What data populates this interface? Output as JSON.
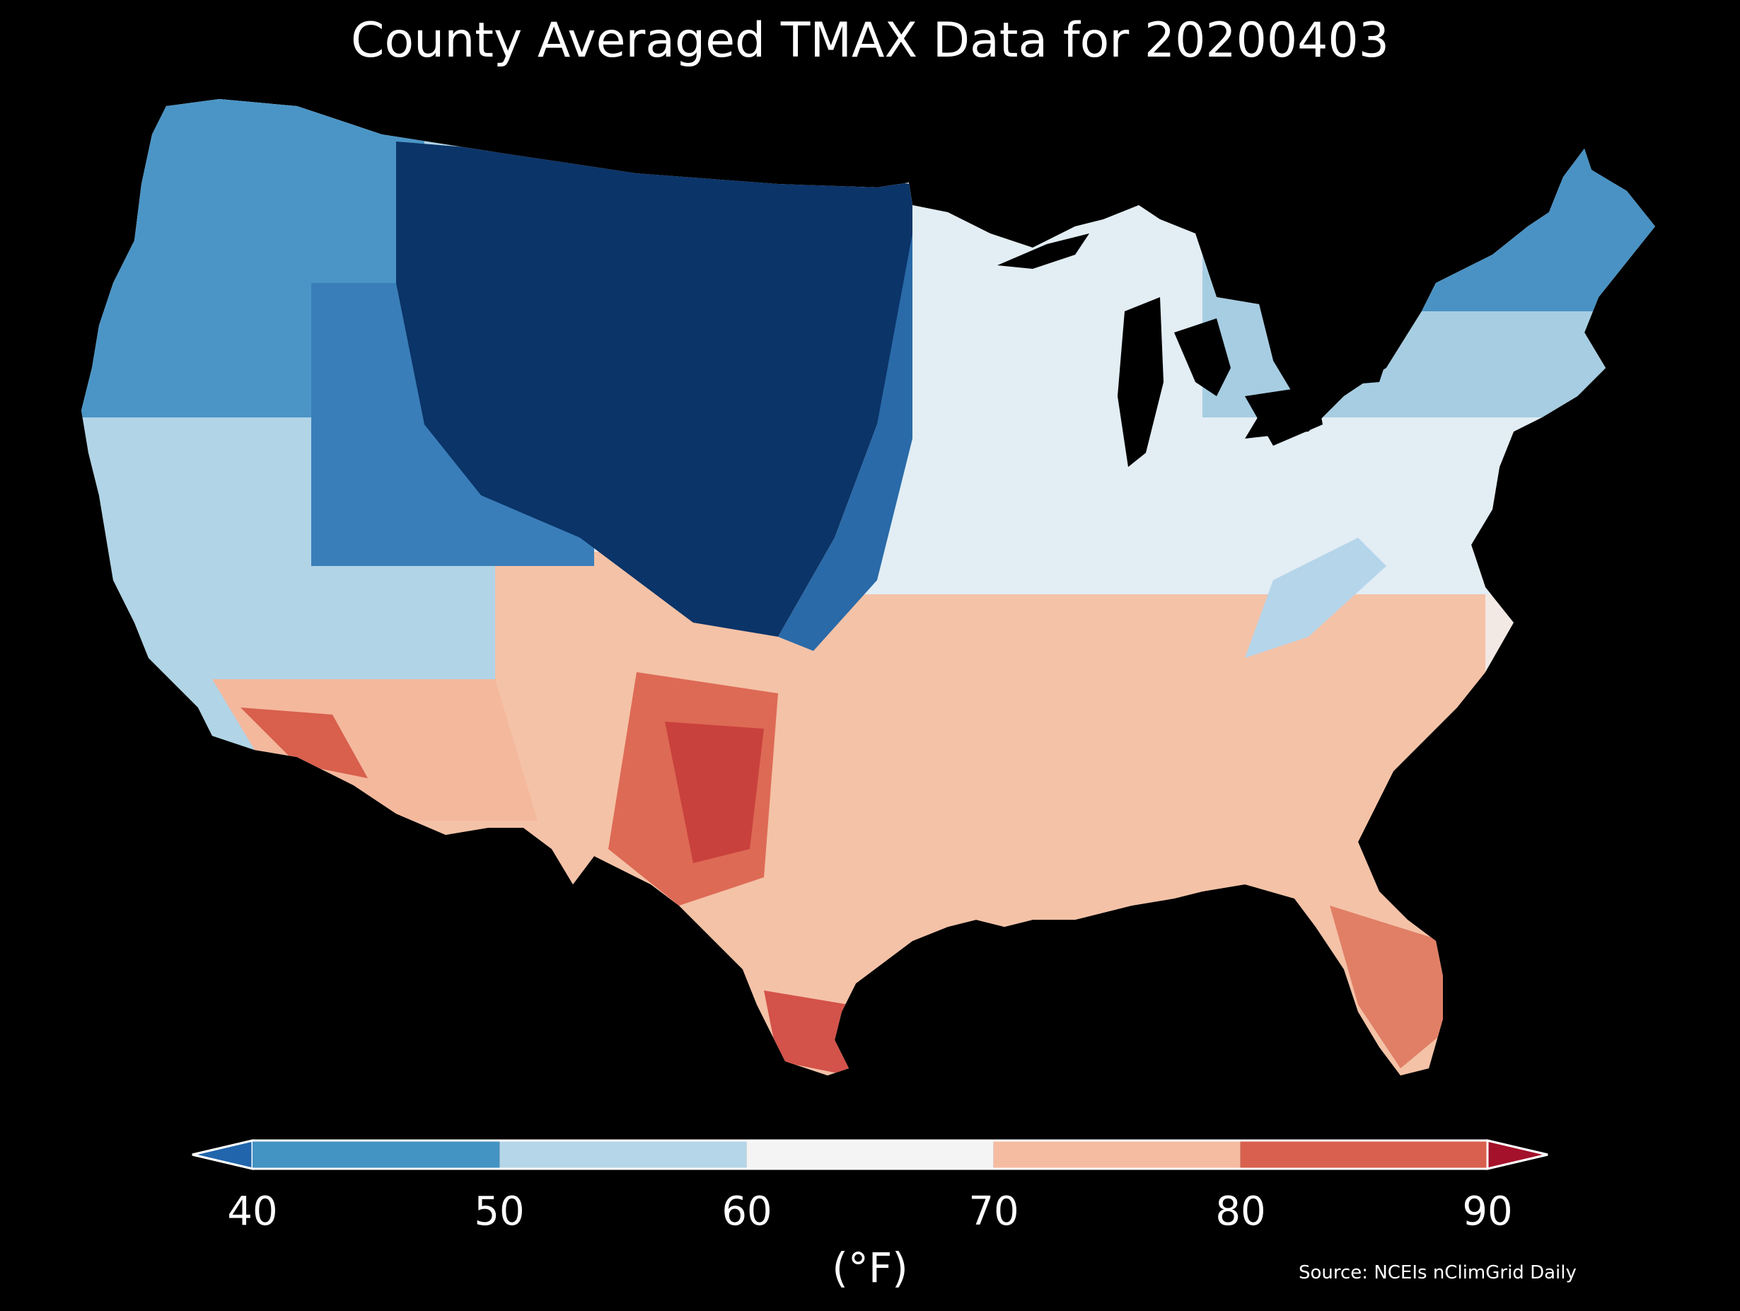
{
  "title": "County Averaged TMAX Data for 20200403",
  "colorbar": {
    "ticks": [
      "40",
      "50",
      "60",
      "70",
      "80",
      "90"
    ],
    "unit": "(°F)",
    "bins": [
      {
        "color": "#2166ac",
        "range": "<40"
      },
      {
        "color": "#4393c3",
        "range": "40-50"
      },
      {
        "color": "#b5d6e8",
        "range": "50-60"
      },
      {
        "color": "#f4f4f4",
        "range": "60-70"
      },
      {
        "color": "#f6bca1",
        "range": "70-80"
      },
      {
        "color": "#d9604e",
        "range": "80-90"
      },
      {
        "color": "#a3122a",
        "range": ">90"
      }
    ]
  },
  "source": "Source: NCEIs nClimGrid Daily",
  "map_regions": [
    {
      "region": "northern-plains",
      "tmax_range": "<40"
    },
    {
      "region": "pacific-northwest",
      "tmax_range": "40-50"
    },
    {
      "region": "northeast",
      "tmax_range": "40-60"
    },
    {
      "region": "great-lakes-midwest",
      "tmax_range": "50-70"
    },
    {
      "region": "southeast",
      "tmax_range": "70-80"
    },
    {
      "region": "southern-texas",
      "tmax_range": "80-90"
    },
    {
      "region": "southwest-desert",
      "tmax_range": "70-90"
    }
  ]
}
